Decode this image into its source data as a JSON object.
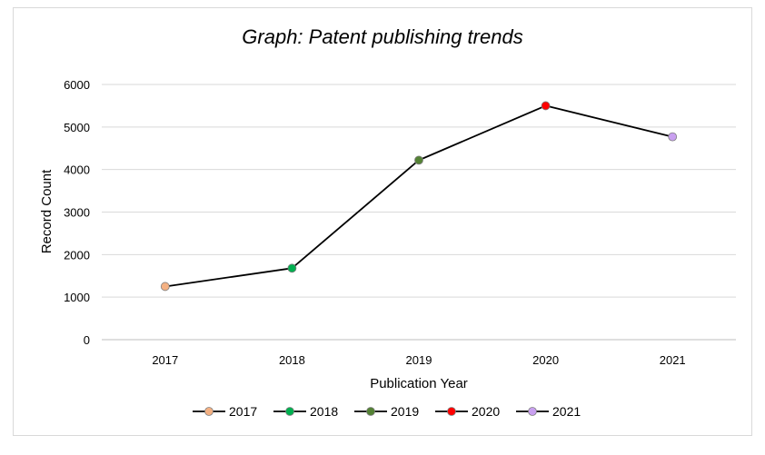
{
  "chart_data": {
    "type": "line",
    "title": "Graph: Patent publishing trends",
    "xlabel": "Publication Year",
    "ylabel": "Record Count",
    "categories": [
      "2017",
      "2018",
      "2019",
      "2020",
      "2021"
    ],
    "values": [
      1250,
      1680,
      4220,
      5500,
      4770
    ],
    "ylim": [
      0,
      6000
    ],
    "yticks": [
      "0",
      "1000",
      "2000",
      "3000",
      "4000",
      "5000",
      "6000"
    ],
    "grid": true,
    "legend_position": "bottom",
    "line_color": "#000000",
    "legend": [
      {
        "label": "2017",
        "color": "#f4b183"
      },
      {
        "label": "2018",
        "color": "#00b050"
      },
      {
        "label": "2019",
        "color": "#548235"
      },
      {
        "label": "2020",
        "color": "#ff0000"
      },
      {
        "label": "2021",
        "color": "#c9a0f0"
      }
    ]
  }
}
